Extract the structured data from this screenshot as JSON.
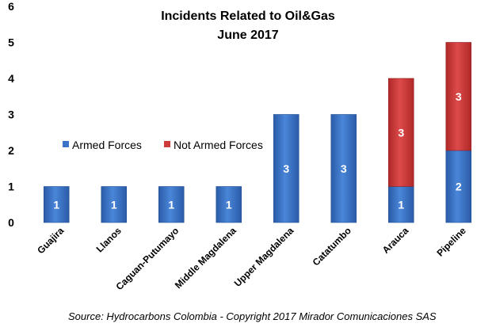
{
  "chart_data": {
    "type": "bar",
    "stacked": true,
    "title": [
      "Incidents Related to Oil&Gas",
      "June 2017"
    ],
    "categories": [
      "Guajira",
      "Llanos",
      "Caguan-Putumayo",
      "Middle Magdalena",
      "Upper Magdalena",
      "Catatumbo",
      "Arauca",
      "Pipeline"
    ],
    "series": [
      {
        "name": "Armed Forces",
        "color": "#3b73c6",
        "values": [
          1,
          1,
          1,
          1,
          3,
          3,
          1,
          2
        ]
      },
      {
        "name": "Not Armed Forces",
        "color": "#cf3b3b",
        "values": [
          0,
          0,
          0,
          0,
          0,
          0,
          3,
          3
        ]
      }
    ],
    "yticks": [
      0,
      1,
      2,
      3,
      4,
      5,
      6
    ],
    "ylim": [
      0,
      6
    ],
    "grid": false,
    "legend_position": "left-middle",
    "source": "Source: Hydrocarbons Colombia - Copyright 2017 Mirador Comunicaciones SAS"
  }
}
